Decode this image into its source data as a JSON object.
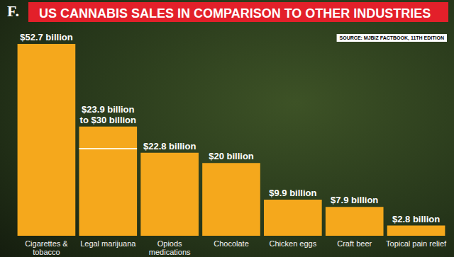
{
  "chart_data": {
    "type": "bar",
    "title": "US CANNABIS SALES IN COMPARISON TO OTHER INDUSTRIES",
    "logo": "F.",
    "source": "SOURCE: MJBIZ FACTBOOK, 11TH EDITION",
    "categories": [
      "Cigarettes &\ntobacco",
      "Legal marijuana",
      "Opiods\nmedications",
      "Chocolate",
      "Chicken eggs",
      "Craft beer",
      "Topical pain relief"
    ],
    "values": [
      52.7,
      30,
      22.8,
      20,
      9.9,
      7.9,
      2.8
    ],
    "low_values": [
      null,
      23.9,
      null,
      null,
      null,
      null,
      null
    ],
    "value_labels": [
      "$52.7 billion",
      "$23.9 billion\nto $30 billion",
      "$22.8 billion",
      "$20 billion",
      "$9.9 billion",
      "$7.9 billion",
      "$2.8 billion"
    ],
    "color": "#f5a81c",
    "ylim": [
      0,
      56
    ],
    "data_labels": true,
    "tick_labels": "x",
    "grid": false
  }
}
